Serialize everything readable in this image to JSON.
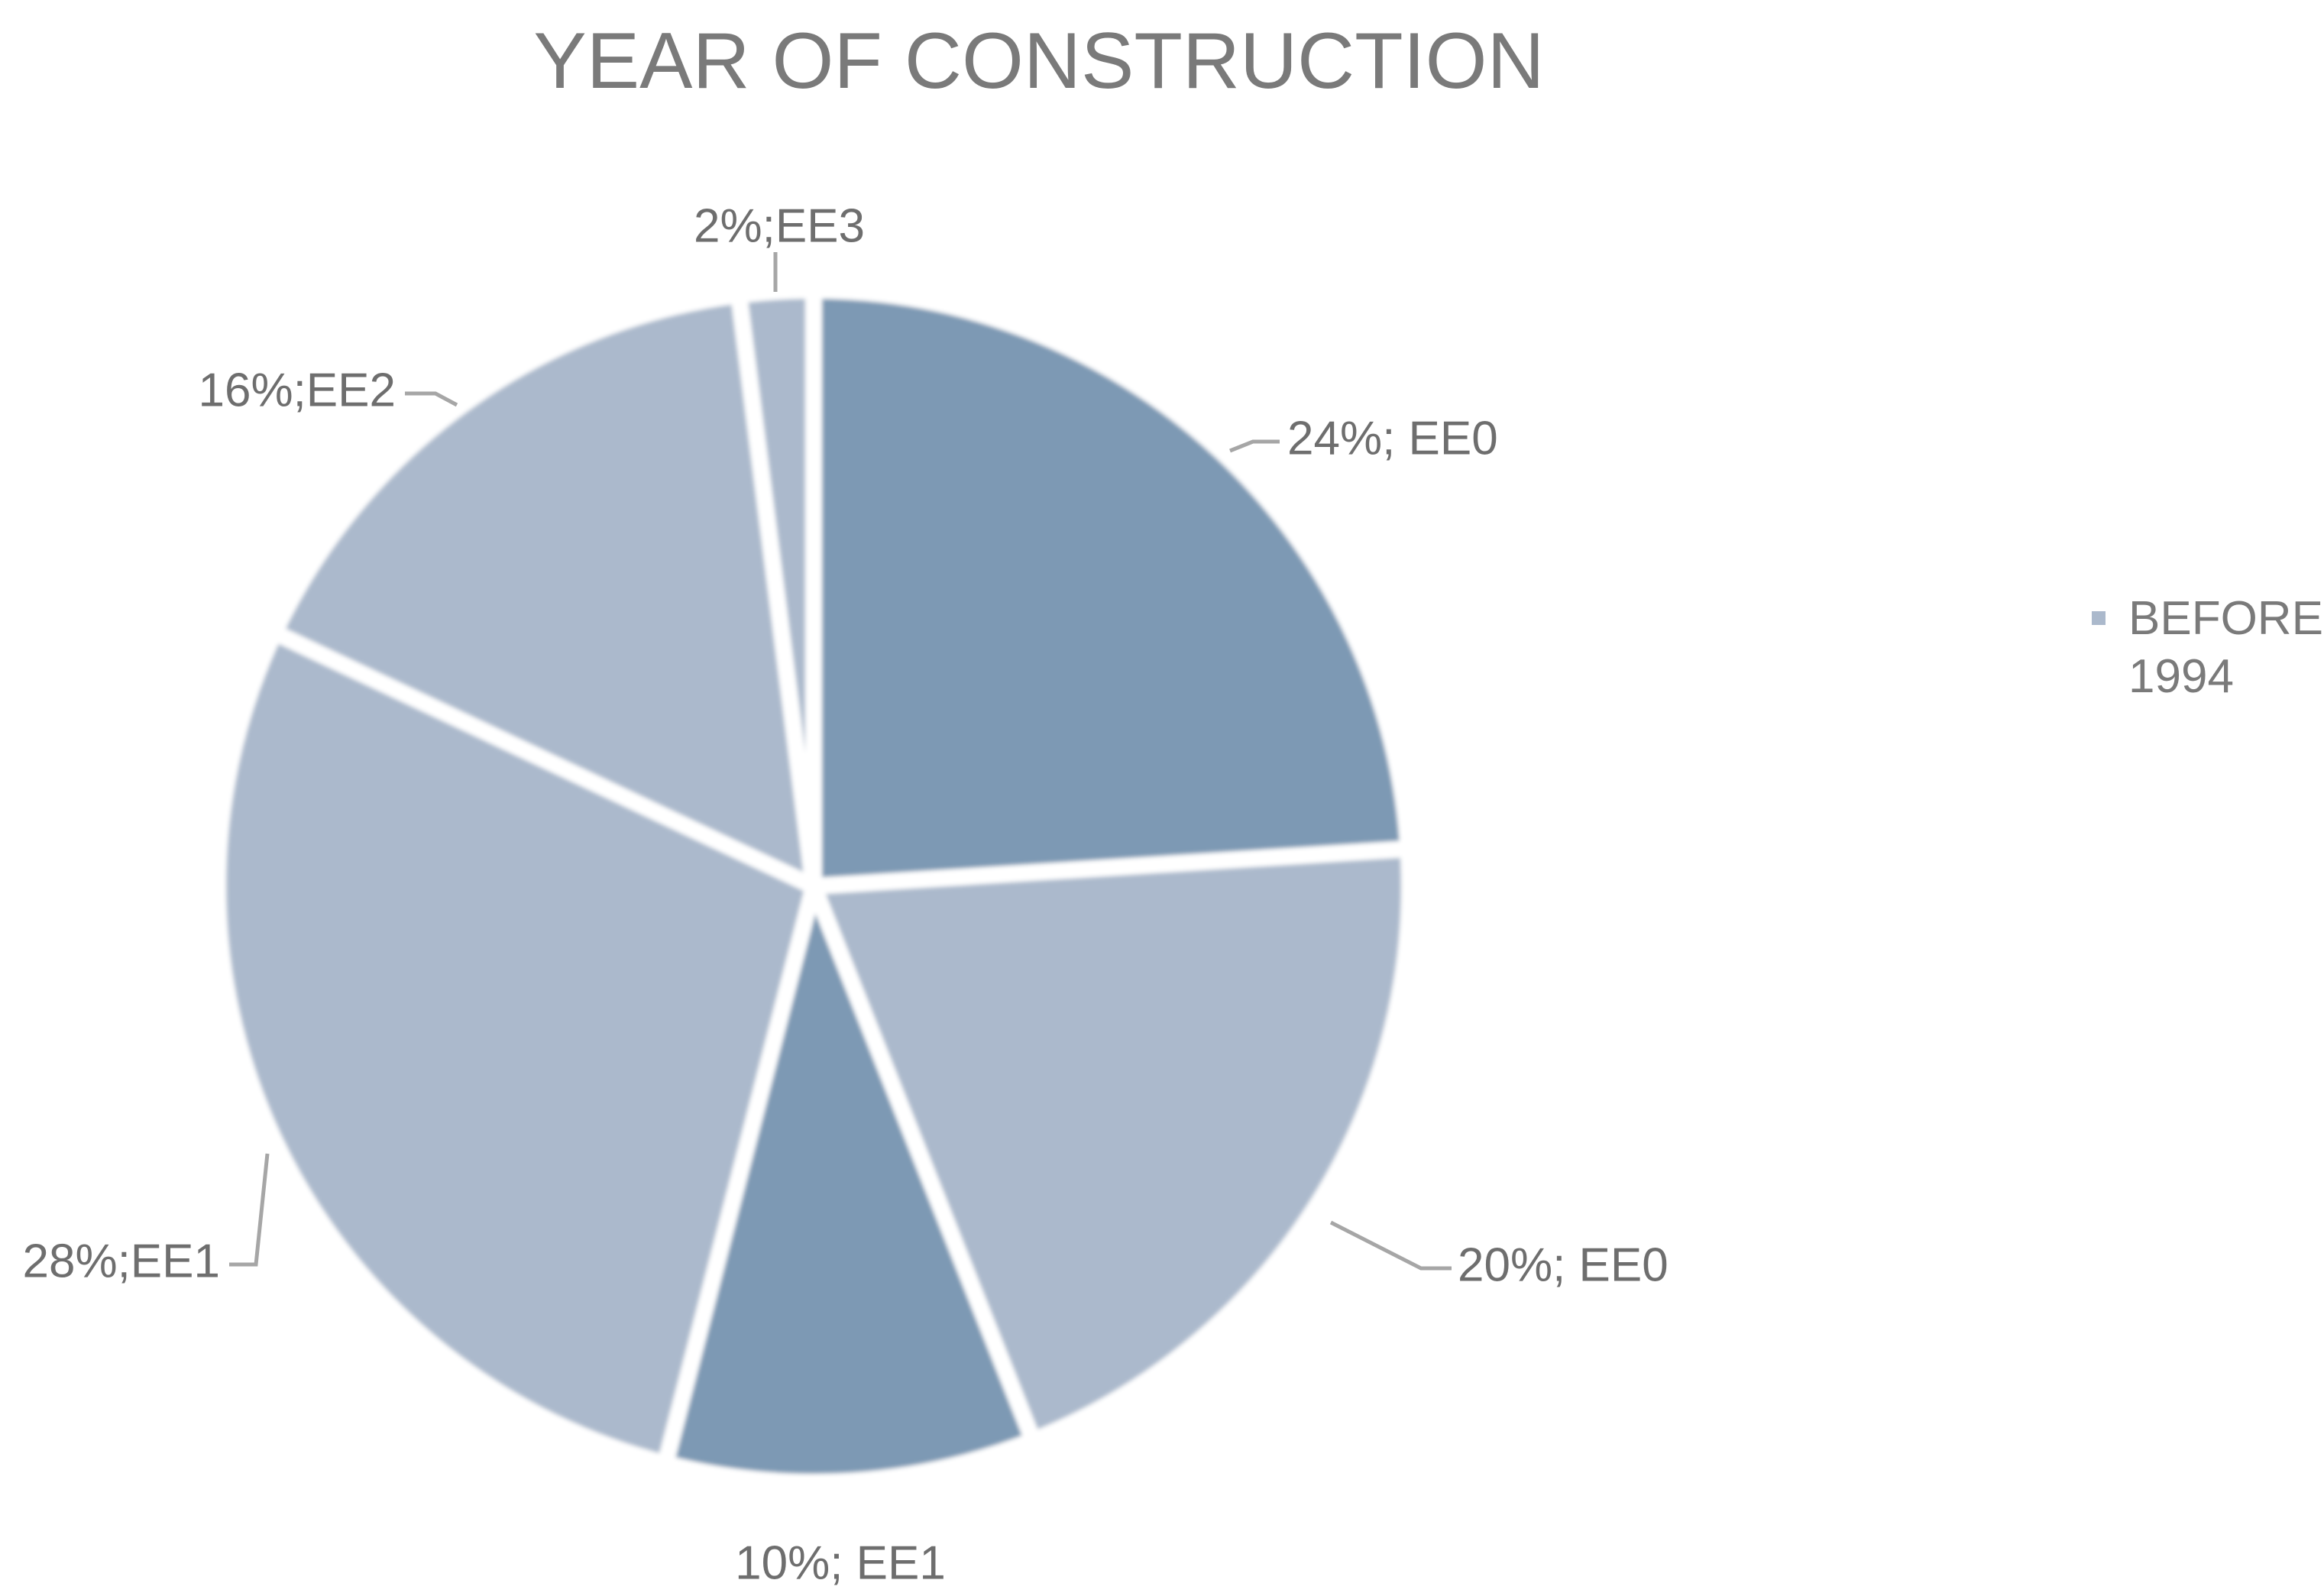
{
  "chart_data": {
    "type": "pie",
    "title": "YEAR OF CONSTRUCTION",
    "slices": [
      {
        "label": "24%; EE0",
        "value": 24,
        "color": "#7d99b4"
      },
      {
        "label": "20%; EE0",
        "value": 20,
        "color": "#abb9cc"
      },
      {
        "label": "10%; EE1",
        "value": 10,
        "color": "#7d99b4"
      },
      {
        "label": "28%;EE1",
        "value": 28,
        "color": "#abb9cc"
      },
      {
        "label": "16%;EE2",
        "value": 16,
        "color": "#abb9cc"
      },
      {
        "label": "2%;EE3",
        "value": 2,
        "color": "#abb9cc"
      }
    ],
    "legend": {
      "position": "right",
      "entries": [
        {
          "name": "BEFORE 1994",
          "lines": [
            "BEFORE",
            "1994"
          ],
          "color": "#abb9cc"
        }
      ]
    }
  }
}
